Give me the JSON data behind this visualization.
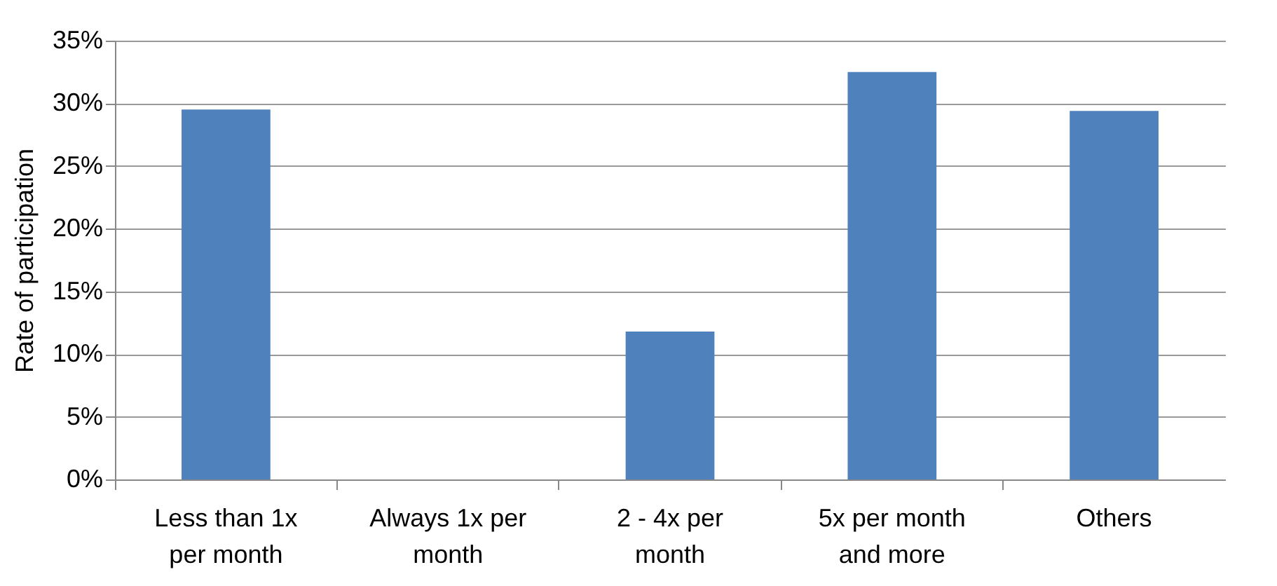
{
  "chart_data": {
    "type": "bar",
    "ylabel": "Rate of participation",
    "categories": [
      "Less than 1x per month",
      "Always 1x per month",
      "2 - 4x per month",
      "5x per month and more",
      "Others"
    ],
    "values": [
      29.5,
      0,
      11.8,
      32.5,
      29.4
    ],
    "color": "#4f81bd",
    "ylim": [
      0,
      35
    ],
    "yticks": [
      {
        "value": 0,
        "label": "0%"
      },
      {
        "value": 5,
        "label": "5%"
      },
      {
        "value": 10,
        "label": "10%"
      },
      {
        "value": 15,
        "label": "15%"
      },
      {
        "value": 20,
        "label": "20%"
      },
      {
        "value": 25,
        "label": "25%"
      },
      {
        "value": 30,
        "label": "30%"
      },
      {
        "value": 35,
        "label": "35%"
      }
    ],
    "grid": "y"
  }
}
